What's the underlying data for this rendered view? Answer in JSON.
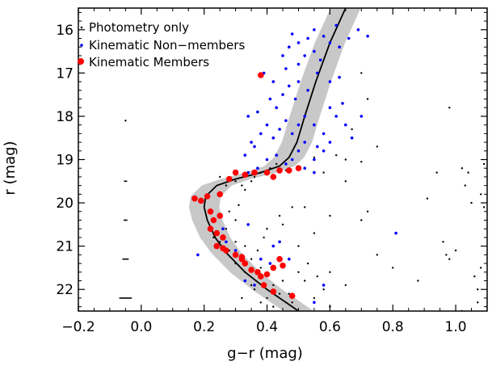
{
  "chart_data": {
    "type": "scatter",
    "title": "",
    "xlabel": "g−r (mag)",
    "ylabel": "r (mag)",
    "xlim": [
      -0.2,
      1.1
    ],
    "ylim": [
      22.5,
      15.5
    ],
    "y_inverted": true,
    "x_ticks": [
      -0.2,
      0.0,
      0.2,
      0.4,
      0.6,
      0.8,
      1.0
    ],
    "x_tick_labels": [
      "−0.2",
      "0.0",
      "0.2",
      "0.4",
      "0.6",
      "0.8",
      "1.0"
    ],
    "y_ticks": [
      16,
      17,
      18,
      19,
      20,
      21,
      22
    ],
    "y_tick_labels": [
      "16",
      "17",
      "18",
      "19",
      "20",
      "21",
      "22"
    ],
    "grid": false,
    "legend_position": "top-left",
    "colors": {
      "photometry": "#000000",
      "nonmember": "#0000ff",
      "member": "#ff0000",
      "band": "#c8c8c8"
    },
    "series": [
      {
        "name": "Photometry only",
        "marker": "dot",
        "points": [
          [
            -0.05,
            18.1
          ],
          [
            0.25,
            19.4
          ],
          [
            0.27,
            19.6
          ],
          [
            0.3,
            19.5
          ],
          [
            0.32,
            19.6
          ],
          [
            0.33,
            19.7
          ],
          [
            0.35,
            19.5
          ],
          [
            0.28,
            20.2
          ],
          [
            0.3,
            20.4
          ],
          [
            0.27,
            20.6
          ],
          [
            0.3,
            20.9
          ],
          [
            0.33,
            21.0
          ],
          [
            0.28,
            21.1
          ],
          [
            0.35,
            21.3
          ],
          [
            0.38,
            21.5
          ],
          [
            0.4,
            21.7
          ],
          [
            0.42,
            21.9
          ],
          [
            0.45,
            21.8
          ],
          [
            0.47,
            22.1
          ],
          [
            0.3,
            21.4
          ],
          [
            0.33,
            21.6
          ],
          [
            0.36,
            22.0
          ],
          [
            0.4,
            22.2
          ],
          [
            0.5,
            21.6
          ],
          [
            0.52,
            21.8
          ],
          [
            0.55,
            22.2
          ],
          [
            0.6,
            22.4
          ],
          [
            0.58,
            22.0
          ],
          [
            0.35,
            21.9
          ],
          [
            0.38,
            22.3
          ],
          [
            0.42,
            22.4
          ],
          [
            0.25,
            20.9
          ],
          [
            0.23,
            20.8
          ],
          [
            0.45,
            20.5
          ],
          [
            0.4,
            20.6
          ],
          [
            0.41,
            19.2
          ],
          [
            0.43,
            19.1
          ],
          [
            0.46,
            19.25
          ],
          [
            0.38,
            19.3
          ],
          [
            0.36,
            19.4
          ],
          [
            0.55,
            18.95
          ],
          [
            0.62,
            18.9
          ],
          [
            0.65,
            19.0
          ],
          [
            0.7,
            19.05
          ],
          [
            0.75,
            18.7
          ],
          [
            0.67,
            18.3
          ],
          [
            0.58,
            19.3
          ],
          [
            0.65,
            19.5
          ],
          [
            0.7,
            20.4
          ],
          [
            0.72,
            20.2
          ],
          [
            0.6,
            20.3
          ],
          [
            0.55,
            20.7
          ],
          [
            0.6,
            21.6
          ],
          [
            0.65,
            21.9
          ],
          [
            0.75,
            21.2
          ],
          [
            0.8,
            21.5
          ],
          [
            0.88,
            21.8
          ],
          [
            0.91,
            19.9
          ],
          [
            0.94,
            19.3
          ],
          [
            0.96,
            20.9
          ],
          [
            0.97,
            21.2
          ],
          [
            0.98,
            21.3
          ],
          [
            1.0,
            21.1
          ],
          [
            1.02,
            22.5
          ],
          [
            1.03,
            19.6
          ],
          [
            1.04,
            19.3
          ],
          [
            1.05,
            20.0
          ],
          [
            1.06,
            21.7
          ],
          [
            1.07,
            22.0
          ],
          [
            1.08,
            19.8
          ],
          [
            1.09,
            19.1
          ],
          [
            1.09,
            20.1
          ],
          [
            1.08,
            21.5
          ],
          [
            1.07,
            22.3
          ],
          [
            0.98,
            17.8
          ],
          [
            1.02,
            19.2
          ],
          [
            0.7,
            17.0
          ],
          [
            0.72,
            17.6
          ],
          [
            0.52,
            20.1
          ],
          [
            0.48,
            20.1
          ],
          [
            0.44,
            20.3
          ],
          [
            0.39,
            20.8
          ],
          [
            0.37,
            21.1
          ],
          [
            0.31,
            20.05
          ],
          [
            0.5,
            21.0
          ],
          [
            0.53,
            21.4
          ],
          [
            0.56,
            21.7
          ],
          [
            0.44,
            22.1
          ],
          [
            0.48,
            22.3
          ],
          [
            0.32,
            22.2
          ]
        ]
      },
      {
        "name": "Kinematic Non−members",
        "marker": "small-circle",
        "points": [
          [
            0.18,
            21.2
          ],
          [
            0.26,
            20.6
          ],
          [
            0.27,
            20.9
          ],
          [
            0.3,
            21.1
          ],
          [
            0.34,
            20.5
          ],
          [
            0.38,
            21.3
          ],
          [
            0.42,
            21.0
          ],
          [
            0.44,
            20.9
          ],
          [
            0.33,
            21.8
          ],
          [
            0.36,
            21.9
          ],
          [
            0.41,
            21.4
          ],
          [
            0.47,
            21.3
          ],
          [
            0.55,
            22.3
          ],
          [
            0.81,
            20.7
          ],
          [
            0.58,
            21.9
          ],
          [
            0.52,
            19.2
          ],
          [
            0.55,
            19.0
          ],
          [
            0.58,
            18.8
          ],
          [
            0.34,
            19.3
          ],
          [
            0.37,
            19.2
          ],
          [
            0.4,
            19.0
          ],
          [
            0.43,
            18.9
          ],
          [
            0.46,
            19.1
          ],
          [
            0.48,
            19.0
          ],
          [
            0.5,
            18.8
          ],
          [
            0.52,
            18.6
          ],
          [
            0.56,
            18.7
          ],
          [
            0.35,
            18.6
          ],
          [
            0.38,
            18.4
          ],
          [
            0.4,
            18.2
          ],
          [
            0.42,
            18.5
          ],
          [
            0.44,
            18.3
          ],
          [
            0.46,
            18.1
          ],
          [
            0.48,
            18.4
          ],
          [
            0.5,
            18.2
          ],
          [
            0.52,
            18.0
          ],
          [
            0.55,
            18.2
          ],
          [
            0.58,
            18.4
          ],
          [
            0.34,
            18.0
          ],
          [
            0.37,
            17.9
          ],
          [
            0.41,
            17.6
          ],
          [
            0.43,
            17.8
          ],
          [
            0.45,
            17.5
          ],
          [
            0.47,
            17.3
          ],
          [
            0.49,
            17.6
          ],
          [
            0.5,
            17.2
          ],
          [
            0.53,
            17.4
          ],
          [
            0.56,
            17.0
          ],
          [
            0.6,
            17.2
          ],
          [
            0.63,
            17.1
          ],
          [
            0.39,
            17.0
          ],
          [
            0.42,
            17.2
          ],
          [
            0.46,
            16.9
          ],
          [
            0.5,
            16.8
          ],
          [
            0.52,
            16.6
          ],
          [
            0.55,
            16.5
          ],
          [
            0.57,
            16.7
          ],
          [
            0.6,
            16.3
          ],
          [
            0.63,
            16.4
          ],
          [
            0.66,
            16.2
          ],
          [
            0.69,
            16.0
          ],
          [
            0.72,
            16.15
          ],
          [
            0.48,
            16.1
          ],
          [
            0.5,
            16.3
          ],
          [
            0.53,
            16.2
          ],
          [
            0.55,
            16.0
          ],
          [
            0.58,
            16.15
          ],
          [
            0.45,
            16.6
          ],
          [
            0.47,
            16.4
          ],
          [
            0.62,
            15.9
          ],
          [
            0.6,
            17.8
          ],
          [
            0.62,
            18.0
          ],
          [
            0.64,
            17.7
          ],
          [
            0.65,
            18.2
          ],
          [
            0.67,
            18.5
          ],
          [
            0.7,
            18.0
          ],
          [
            0.33,
            18.9
          ],
          [
            0.36,
            18.7
          ],
          [
            0.6,
            18.6
          ],
          [
            0.55,
            19.3
          ]
        ]
      },
      {
        "name": "Kinematic Members",
        "marker": "large-circle",
        "points": [
          [
            0.38,
            17.05
          ],
          [
            0.4,
            19.3
          ],
          [
            0.44,
            19.25
          ],
          [
            0.47,
            19.25
          ],
          [
            0.42,
            19.4
          ],
          [
            0.36,
            19.3
          ],
          [
            0.33,
            19.35
          ],
          [
            0.3,
            19.3
          ],
          [
            0.28,
            19.45
          ],
          [
            0.5,
            19.2
          ],
          [
            0.17,
            19.9
          ],
          [
            0.19,
            19.95
          ],
          [
            0.21,
            19.85
          ],
          [
            0.25,
            19.8
          ],
          [
            0.22,
            20.2
          ],
          [
            0.23,
            20.4
          ],
          [
            0.25,
            20.3
          ],
          [
            0.22,
            20.6
          ],
          [
            0.24,
            20.7
          ],
          [
            0.26,
            20.8
          ],
          [
            0.24,
            21.0
          ],
          [
            0.26,
            21.05
          ],
          [
            0.27,
            21.1
          ],
          [
            0.3,
            21.2
          ],
          [
            0.32,
            21.3
          ],
          [
            0.33,
            21.4
          ],
          [
            0.35,
            21.55
          ],
          [
            0.38,
            21.7
          ],
          [
            0.4,
            21.65
          ],
          [
            0.42,
            21.5
          ],
          [
            0.37,
            21.6
          ],
          [
            0.44,
            21.3
          ],
          [
            0.45,
            21.45
          ],
          [
            0.39,
            21.9
          ],
          [
            0.42,
            22.05
          ],
          [
            0.48,
            22.15
          ],
          [
            0.32,
            21.25
          ]
        ]
      }
    ],
    "isochrone": {
      "points": [
        [
          0.65,
          15.5
        ],
        [
          0.6,
          16.3
        ],
        [
          0.555,
          17.2
        ],
        [
          0.52,
          18.0
        ],
        [
          0.495,
          18.6
        ],
        [
          0.47,
          18.95
        ],
        [
          0.44,
          19.15
        ],
        [
          0.38,
          19.3
        ],
        [
          0.3,
          19.45
        ],
        [
          0.24,
          19.6
        ],
        [
          0.205,
          19.85
        ],
        [
          0.2,
          20.1
        ],
        [
          0.21,
          20.4
        ],
        [
          0.235,
          20.8
        ],
        [
          0.27,
          21.15
        ],
        [
          0.33,
          21.6
        ],
        [
          0.4,
          22.0
        ],
        [
          0.46,
          22.3
        ],
        [
          0.5,
          22.5
        ]
      ],
      "band_halfwidth": 0.048
    }
  },
  "x_error_bar_markers": [
    {
      "r": 19.5,
      "err": 0.004
    },
    {
      "r": 20.4,
      "err": 0.006
    },
    {
      "r": 21.3,
      "err": 0.01
    },
    {
      "r": 22.2,
      "err": 0.02
    }
  ],
  "error_bar_x": -0.05
}
